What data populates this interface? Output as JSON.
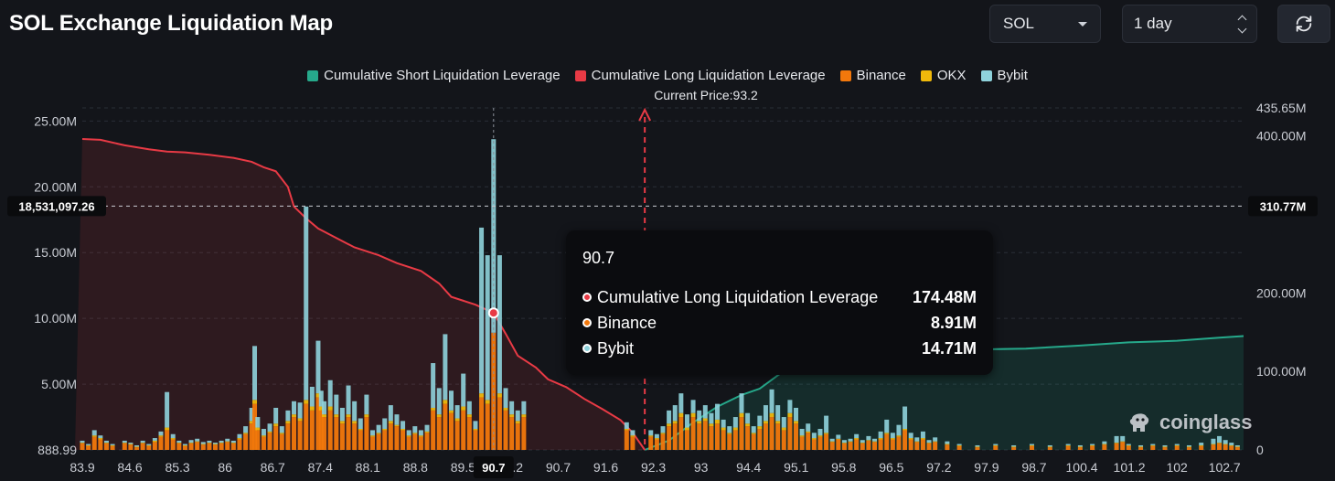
{
  "header": {
    "title": "SOL Exchange Liquidation Map",
    "symbol_select": "SOL",
    "range_select": "1 day"
  },
  "legend": [
    {
      "label": "Cumulative Short Liquidation Leverage",
      "color": "#26a98b"
    },
    {
      "label": "Cumulative Long Liquidation Leverage",
      "color": "#e83a45"
    },
    {
      "label": "Binance",
      "color": "#f2780c"
    },
    {
      "label": "OKX",
      "color": "#f0b90b"
    },
    {
      "label": "Bybit",
      "color": "#8fd3dc"
    }
  ],
  "current_price_label": "Current Price:93.2",
  "crosshair": {
    "left_value": "18,531,097.26",
    "right_value": "310.77M",
    "x_label": "90.7"
  },
  "tooltip": {
    "title": "90.7",
    "rows": [
      {
        "label": "Cumulative Long Liquidation Leverage",
        "value": "174.48M",
        "color": "#e83a45"
      },
      {
        "label": "Binance",
        "value": "8.91M",
        "color": "#f2780c"
      },
      {
        "label": "Bybit",
        "value": "14.71M",
        "color": "#8fd3dc"
      }
    ]
  },
  "watermark": "coinglass",
  "chart_data": {
    "type": "bar",
    "x_tick_labels": [
      "83.9",
      "84.6",
      "85.3",
      "86",
      "86.7",
      "87.4",
      "88.1",
      "88.8",
      "89.5",
      "90.2",
      "90.7",
      "91.6",
      "92.3",
      "93",
      "94.4",
      "95.1",
      "95.8",
      "96.5",
      "97.2",
      "97.9",
      "98.7",
      "100.4",
      "101.2",
      "102",
      "102.7"
    ],
    "y_left_ticks": [
      "888.99",
      "5.00M",
      "10.00M",
      "15.00M",
      "20.00M",
      "25.00M"
    ],
    "y_right_ticks": [
      "0",
      "100.00M",
      "200.00M",
      "300.00M",
      "400.00M",
      "435.65M"
    ],
    "y_left_range": [
      0,
      26000000
    ],
    "y_right_range": [
      0,
      435650000
    ],
    "x_range": [
      83.9,
      103.1
    ],
    "current_price": 93.2,
    "hover_x": 90.7,
    "stack_order": [
      "Binance",
      "OKX",
      "Bybit"
    ],
    "exchange_bars_note": "stacked per price level, values in millions",
    "bars": [
      {
        "x": 83.9,
        "binance": 0.5,
        "okx": 0.05,
        "bybit": 0.15
      },
      {
        "x": 84.0,
        "binance": 0.3,
        "okx": 0.05,
        "bybit": 0.1
      },
      {
        "x": 84.1,
        "binance": 1.0,
        "okx": 0.1,
        "bybit": 0.4
      },
      {
        "x": 84.2,
        "binance": 0.8,
        "okx": 0.1,
        "bybit": 0.2
      },
      {
        "x": 84.3,
        "binance": 0.5,
        "okx": 0.05,
        "bybit": 0.15
      },
      {
        "x": 84.4,
        "binance": 0.3,
        "okx": 0.05,
        "bybit": 0.1
      },
      {
        "x": 84.6,
        "binance": 0.5,
        "okx": 0.05,
        "bybit": 0.15
      },
      {
        "x": 84.7,
        "binance": 0.4,
        "okx": 0.05,
        "bybit": 0.1
      },
      {
        "x": 84.8,
        "binance": 0.2,
        "okx": 0.05,
        "bybit": 0.1
      },
      {
        "x": 84.9,
        "binance": 0.5,
        "okx": 0.05,
        "bybit": 0.15
      },
      {
        "x": 85.0,
        "binance": 0.3,
        "okx": 0.05,
        "bybit": 0.1
      },
      {
        "x": 85.1,
        "binance": 0.6,
        "okx": 0.1,
        "bybit": 0.2
      },
      {
        "x": 85.2,
        "binance": 1.0,
        "okx": 0.1,
        "bybit": 0.3
      },
      {
        "x": 85.3,
        "binance": 1.5,
        "okx": 0.2,
        "bybit": 2.7
      },
      {
        "x": 85.4,
        "binance": 0.8,
        "okx": 0.1,
        "bybit": 0.3
      },
      {
        "x": 85.5,
        "binance": 0.5,
        "okx": 0.05,
        "bybit": 0.15
      },
      {
        "x": 85.6,
        "binance": 0.3,
        "okx": 0.05,
        "bybit": 0.1
      },
      {
        "x": 85.7,
        "binance": 0.5,
        "okx": 0.05,
        "bybit": 0.2
      },
      {
        "x": 85.8,
        "binance": 0.6,
        "okx": 0.05,
        "bybit": 0.2
      },
      {
        "x": 85.9,
        "binance": 0.4,
        "okx": 0.05,
        "bybit": 0.15
      },
      {
        "x": 86.0,
        "binance": 0.5,
        "okx": 0.05,
        "bybit": 0.15
      },
      {
        "x": 86.1,
        "binance": 0.4,
        "okx": 0.05,
        "bybit": 0.1
      },
      {
        "x": 86.2,
        "binance": 0.5,
        "okx": 0.05,
        "bybit": 0.15
      },
      {
        "x": 86.3,
        "binance": 0.6,
        "okx": 0.05,
        "bybit": 0.2
      },
      {
        "x": 86.4,
        "binance": 0.5,
        "okx": 0.05,
        "bybit": 0.15
      },
      {
        "x": 86.5,
        "binance": 0.8,
        "okx": 0.1,
        "bybit": 0.3
      },
      {
        "x": 86.6,
        "binance": 1.2,
        "okx": 0.1,
        "bybit": 0.5
      },
      {
        "x": 86.7,
        "binance": 2.0,
        "okx": 0.2,
        "bybit": 1.0
      },
      {
        "x": 86.75,
        "binance": 3.5,
        "okx": 0.3,
        "bybit": 4.1
      },
      {
        "x": 86.8,
        "binance": 1.5,
        "okx": 0.2,
        "bybit": 0.8
      },
      {
        "x": 86.9,
        "binance": 1.0,
        "okx": 0.1,
        "bybit": 0.5
      },
      {
        "x": 87.0,
        "binance": 1.3,
        "okx": 0.1,
        "bybit": 0.6
      },
      {
        "x": 87.1,
        "binance": 1.8,
        "okx": 0.2,
        "bybit": 1.2
      },
      {
        "x": 87.2,
        "binance": 1.2,
        "okx": 0.1,
        "bybit": 0.5
      },
      {
        "x": 87.3,
        "binance": 2.0,
        "okx": 0.2,
        "bybit": 0.8
      },
      {
        "x": 87.4,
        "binance": 2.5,
        "okx": 0.2,
        "bybit": 1.0
      },
      {
        "x": 87.5,
        "binance": 2.2,
        "okx": 0.2,
        "bybit": 1.2
      },
      {
        "x": 87.6,
        "binance": 3.5,
        "okx": 0.3,
        "bybit": 14.7
      },
      {
        "x": 87.7,
        "binance": 3.0,
        "okx": 0.3,
        "bybit": 1.5
      },
      {
        "x": 87.8,
        "binance": 4.0,
        "okx": 0.3,
        "bybit": 4.0
      },
      {
        "x": 87.85,
        "binance": 3.0,
        "okx": 0.3,
        "bybit": 1.2
      },
      {
        "x": 87.9,
        "binance": 2.5,
        "okx": 0.2,
        "bybit": 1.0
      },
      {
        "x": 88.0,
        "binance": 3.0,
        "okx": 0.3,
        "bybit": 2.0
      },
      {
        "x": 88.1,
        "binance": 2.5,
        "okx": 0.2,
        "bybit": 1.5
      },
      {
        "x": 88.2,
        "binance": 2.0,
        "okx": 0.2,
        "bybit": 1.0
      },
      {
        "x": 88.3,
        "binance": 2.5,
        "okx": 0.2,
        "bybit": 2.2
      },
      {
        "x": 88.4,
        "binance": 2.0,
        "okx": 0.2,
        "bybit": 1.5
      },
      {
        "x": 88.5,
        "binance": 1.5,
        "okx": 0.1,
        "bybit": 0.8
      },
      {
        "x": 88.6,
        "binance": 2.5,
        "okx": 0.2,
        "bybit": 1.5
      },
      {
        "x": 88.7,
        "binance": 1.0,
        "okx": 0.1,
        "bybit": 0.4
      },
      {
        "x": 88.8,
        "binance": 1.2,
        "okx": 0.1,
        "bybit": 0.6
      },
      {
        "x": 88.9,
        "binance": 1.5,
        "okx": 0.1,
        "bybit": 0.8
      },
      {
        "x": 89.0,
        "binance": 2.0,
        "okx": 0.2,
        "bybit": 1.2
      },
      {
        "x": 89.1,
        "binance": 1.8,
        "okx": 0.1,
        "bybit": 0.8
      },
      {
        "x": 89.2,
        "binance": 1.5,
        "okx": 0.1,
        "bybit": 0.6
      },
      {
        "x": 89.3,
        "binance": 1.0,
        "okx": 0.1,
        "bybit": 0.4
      },
      {
        "x": 89.4,
        "binance": 1.2,
        "okx": 0.1,
        "bybit": 0.5
      },
      {
        "x": 89.5,
        "binance": 1.0,
        "okx": 0.1,
        "bybit": 0.4
      },
      {
        "x": 89.6,
        "binance": 1.3,
        "okx": 0.1,
        "bybit": 0.5
      },
      {
        "x": 89.7,
        "binance": 3.0,
        "okx": 0.2,
        "bybit": 3.4
      },
      {
        "x": 89.8,
        "binance": 2.5,
        "okx": 0.2,
        "bybit": 2.0
      },
      {
        "x": 89.9,
        "binance": 3.5,
        "okx": 0.3,
        "bybit": 5.0
      },
      {
        "x": 90.0,
        "binance": 2.8,
        "okx": 0.2,
        "bybit": 1.5
      },
      {
        "x": 90.1,
        "binance": 2.2,
        "okx": 0.2,
        "bybit": 1.0
      },
      {
        "x": 90.2,
        "binance": 3.0,
        "okx": 0.3,
        "bybit": 2.5
      },
      {
        "x": 90.3,
        "binance": 2.5,
        "okx": 0.2,
        "bybit": 1.0
      },
      {
        "x": 90.4,
        "binance": 1.5,
        "okx": 0.1,
        "bybit": 0.6
      },
      {
        "x": 90.5,
        "binance": 4.0,
        "okx": 0.3,
        "bybit": 12.6
      },
      {
        "x": 90.6,
        "binance": 3.5,
        "okx": 0.3,
        "bybit": 11.0
      },
      {
        "x": 90.7,
        "binance": 8.91,
        "okx": 0.0,
        "bybit": 14.71
      },
      {
        "x": 90.8,
        "binance": 4.0,
        "okx": 0.3,
        "bybit": 10.5
      },
      {
        "x": 90.9,
        "binance": 3.0,
        "okx": 0.2,
        "bybit": 1.5
      },
      {
        "x": 91.0,
        "binance": 2.5,
        "okx": 0.2,
        "bybit": 1.0
      },
      {
        "x": 91.1,
        "binance": 2.0,
        "okx": 0.2,
        "bybit": 0.8
      },
      {
        "x": 91.2,
        "binance": 2.5,
        "okx": 0.2,
        "bybit": 1.0
      }
    ],
    "bars_right_of_tooltip": [
      {
        "x": 92.9,
        "binance": 1.5,
        "okx": 0.1,
        "bybit": 0.5
      },
      {
        "x": 93.0,
        "binance": 1.0,
        "okx": 0.1,
        "bybit": 0.4
      },
      {
        "x": 93.3,
        "binance": 1.0,
        "okx": 0.1,
        "bybit": 0.4
      },
      {
        "x": 93.4,
        "binance": 0.8,
        "okx": 0.1,
        "bybit": 0.3
      },
      {
        "x": 93.5,
        "binance": 1.2,
        "okx": 0.1,
        "bybit": 0.5
      },
      {
        "x": 93.6,
        "binance": 1.8,
        "okx": 0.2,
        "bybit": 1.0
      },
      {
        "x": 93.7,
        "binance": 2.0,
        "okx": 0.2,
        "bybit": 1.2
      },
      {
        "x": 93.8,
        "binance": 2.5,
        "okx": 0.3,
        "bybit": 1.5
      },
      {
        "x": 93.9,
        "binance": 1.5,
        "okx": 0.2,
        "bybit": 1.0
      },
      {
        "x": 94.0,
        "binance": 2.5,
        "okx": 0.3,
        "bybit": 1.0
      },
      {
        "x": 94.1,
        "binance": 2.0,
        "okx": 0.2,
        "bybit": 0.8
      },
      {
        "x": 94.2,
        "binance": 2.2,
        "okx": 0.2,
        "bybit": 1.0
      },
      {
        "x": 94.3,
        "binance": 1.8,
        "okx": 0.2,
        "bybit": 0.8
      },
      {
        "x": 94.4,
        "binance": 2.0,
        "okx": 0.3,
        "bybit": 1.2
      },
      {
        "x": 94.5,
        "binance": 1.5,
        "okx": 0.2,
        "bybit": 0.6
      },
      {
        "x": 94.6,
        "binance": 1.2,
        "okx": 0.1,
        "bybit": 0.5
      },
      {
        "x": 94.7,
        "binance": 1.5,
        "okx": 0.2,
        "bybit": 0.8
      },
      {
        "x": 94.8,
        "binance": 2.5,
        "okx": 0.3,
        "bybit": 1.5
      },
      {
        "x": 94.9,
        "binance": 1.8,
        "okx": 0.2,
        "bybit": 0.8
      },
      {
        "x": 95.0,
        "binance": 1.2,
        "okx": 0.1,
        "bybit": 0.5
      },
      {
        "x": 95.1,
        "binance": 1.6,
        "okx": 0.2,
        "bybit": 0.8
      },
      {
        "x": 95.2,
        "binance": 2.0,
        "okx": 0.2,
        "bybit": 1.2
      },
      {
        "x": 95.3,
        "binance": 2.5,
        "okx": 0.3,
        "bybit": 1.8
      },
      {
        "x": 95.4,
        "binance": 2.0,
        "okx": 0.2,
        "bybit": 1.2
      },
      {
        "x": 95.5,
        "binance": 1.5,
        "okx": 0.2,
        "bybit": 0.8
      },
      {
        "x": 95.6,
        "binance": 2.5,
        "okx": 0.3,
        "bybit": 1.0
      },
      {
        "x": 95.7,
        "binance": 2.0,
        "okx": 0.2,
        "bybit": 1.0
      },
      {
        "x": 95.8,
        "binance": 1.0,
        "okx": 0.1,
        "bybit": 0.5
      },
      {
        "x": 95.9,
        "binance": 1.3,
        "okx": 0.1,
        "bybit": 0.6
      },
      {
        "x": 96.0,
        "binance": 0.8,
        "okx": 0.1,
        "bybit": 0.4
      },
      {
        "x": 96.1,
        "binance": 1.0,
        "okx": 0.1,
        "bybit": 0.5
      },
      {
        "x": 96.2,
        "binance": 1.2,
        "okx": 0.1,
        "bybit": 1.3
      },
      {
        "x": 96.3,
        "binance": 0.6,
        "okx": 0.05,
        "bybit": 0.2
      },
      {
        "x": 96.4,
        "binance": 0.8,
        "okx": 0.05,
        "bybit": 0.3
      },
      {
        "x": 96.5,
        "binance": 0.5,
        "okx": 0.05,
        "bybit": 0.2
      },
      {
        "x": 96.6,
        "binance": 0.6,
        "okx": 0.05,
        "bybit": 0.2
      },
      {
        "x": 96.7,
        "binance": 0.8,
        "okx": 0.1,
        "bybit": 0.3
      },
      {
        "x": 96.8,
        "binance": 0.5,
        "okx": 0.05,
        "bybit": 0.2
      },
      {
        "x": 96.9,
        "binance": 0.7,
        "okx": 0.05,
        "bybit": 0.3
      },
      {
        "x": 97.0,
        "binance": 0.6,
        "okx": 0.05,
        "bybit": 0.2
      },
      {
        "x": 97.1,
        "binance": 0.8,
        "okx": 0.1,
        "bybit": 0.5
      },
      {
        "x": 97.2,
        "binance": 1.2,
        "okx": 0.1,
        "bybit": 1.0
      },
      {
        "x": 97.3,
        "binance": 0.8,
        "okx": 0.1,
        "bybit": 0.4
      },
      {
        "x": 97.4,
        "binance": 1.0,
        "okx": 0.1,
        "bybit": 0.8
      },
      {
        "x": 97.5,
        "binance": 1.5,
        "okx": 0.1,
        "bybit": 1.7
      },
      {
        "x": 97.6,
        "binance": 0.8,
        "okx": 0.1,
        "bybit": 0.4
      },
      {
        "x": 97.7,
        "binance": 0.6,
        "okx": 0.05,
        "bybit": 0.3
      },
      {
        "x": 97.8,
        "binance": 0.8,
        "okx": 0.1,
        "bybit": 0.5
      },
      {
        "x": 97.9,
        "binance": 0.5,
        "okx": 0.05,
        "bybit": 0.2
      },
      {
        "x": 98.0,
        "binance": 0.6,
        "okx": 0.05,
        "bybit": 0.3
      },
      {
        "x": 98.2,
        "binance": 0.4,
        "okx": 0.05,
        "bybit": 0.2
      },
      {
        "x": 98.4,
        "binance": 0.3,
        "okx": 0.05,
        "bybit": 0.1
      },
      {
        "x": 98.7,
        "binance": 0.2,
        "okx": 0.05,
        "bybit": 0.1
      },
      {
        "x": 99.0,
        "binance": 0.3,
        "okx": 0.05,
        "bybit": 0.1
      },
      {
        "x": 99.3,
        "binance": 0.2,
        "okx": 0.05,
        "bybit": 0.1
      },
      {
        "x": 99.6,
        "binance": 0.3,
        "okx": 0.05,
        "bybit": 0.1
      },
      {
        "x": 99.9,
        "binance": 0.2,
        "okx": 0.05,
        "bybit": 0.1
      },
      {
        "x": 100.2,
        "binance": 0.3,
        "okx": 0.05,
        "bybit": 0.1
      },
      {
        "x": 100.4,
        "binance": 0.2,
        "okx": 0.05,
        "bybit": 0.1
      },
      {
        "x": 100.6,
        "binance": 0.3,
        "okx": 0.05,
        "bybit": 0.1
      },
      {
        "x": 100.8,
        "binance": 0.4,
        "okx": 0.05,
        "bybit": 0.2
      },
      {
        "x": 101.0,
        "binance": 0.5,
        "okx": 0.05,
        "bybit": 0.5
      },
      {
        "x": 101.1,
        "binance": 0.6,
        "okx": 0.05,
        "bybit": 0.4
      },
      {
        "x": 101.2,
        "binance": 0.3,
        "okx": 0.05,
        "bybit": 0.1
      },
      {
        "x": 101.4,
        "binance": 0.2,
        "okx": 0.05,
        "bybit": 0.1
      },
      {
        "x": 101.6,
        "binance": 0.3,
        "okx": 0.05,
        "bybit": 0.1
      },
      {
        "x": 101.8,
        "binance": 0.2,
        "okx": 0.05,
        "bybit": 0.1
      },
      {
        "x": 102.0,
        "binance": 0.3,
        "okx": 0.05,
        "bybit": 0.1
      },
      {
        "x": 102.2,
        "binance": 0.2,
        "okx": 0.05,
        "bybit": 0.1
      },
      {
        "x": 102.4,
        "binance": 0.3,
        "okx": 0.05,
        "bybit": 0.2
      },
      {
        "x": 102.6,
        "binance": 0.4,
        "okx": 0.05,
        "bybit": 0.4
      },
      {
        "x": 102.7,
        "binance": 0.5,
        "okx": 0.05,
        "bybit": 0.5
      },
      {
        "x": 102.8,
        "binance": 0.4,
        "okx": 0.05,
        "bybit": 0.3
      },
      {
        "x": 102.9,
        "binance": 0.3,
        "okx": 0.05,
        "bybit": 0.2
      },
      {
        "x": 103.0,
        "binance": 0.2,
        "okx": 0.05,
        "bybit": 0.1
      }
    ],
    "cumulative_long": {
      "name": "Cumulative Long Liquidation Leverage",
      "x": [
        83.9,
        84.2,
        84.6,
        85.0,
        85.3,
        85.6,
        86.0,
        86.4,
        86.7,
        86.9,
        87.1,
        87.3,
        87.4,
        87.6,
        87.8,
        88.1,
        88.4,
        88.8,
        89.1,
        89.5,
        89.8,
        90.0,
        90.2,
        90.4,
        90.6,
        90.7,
        90.9,
        91.1,
        91.4,
        91.6,
        91.9,
        92.2,
        92.5,
        92.8,
        93.0,
        93.2
      ],
      "y_right_millions": [
        396,
        395,
        388,
        383,
        380,
        379,
        376,
        372,
        367,
        360,
        355,
        335,
        310,
        295,
        282,
        270,
        258,
        248,
        238,
        228,
        212,
        195,
        190,
        185,
        178,
        174.48,
        148,
        120,
        105,
        90,
        80,
        65,
        52,
        38,
        22,
        0
      ]
    },
    "cumulative_short": {
      "name": "Cumulative Short Liquidation Leverage",
      "x": [
        93.2,
        93.6,
        94.0,
        94.4,
        94.8,
        95.1,
        95.4,
        95.7,
        96.0,
        96.5,
        97.2,
        97.9,
        98.7,
        99.5,
        100.4,
        101.2,
        102.0,
        102.7,
        103.1
      ],
      "y_right_millions": [
        0,
        12,
        35,
        55,
        70,
        78,
        95,
        110,
        118,
        124,
        126,
        127,
        128,
        129,
        133,
        137,
        139,
        143,
        145
      ]
    }
  }
}
